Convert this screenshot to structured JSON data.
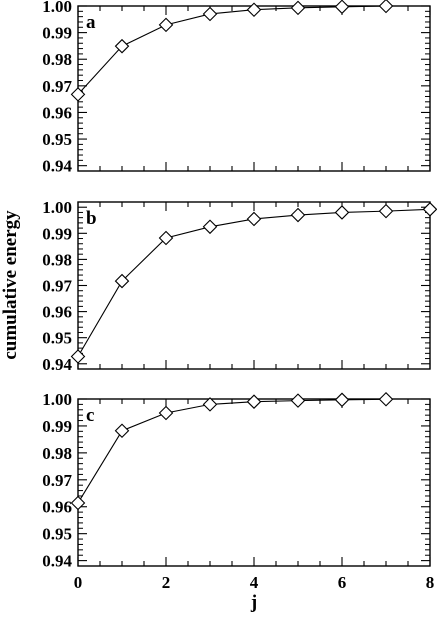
{
  "ylabel": "cumulative energy",
  "xlabel": "j",
  "x_tick_labels": [
    "0",
    "2",
    "4",
    "6",
    "8"
  ],
  "chart_data": [
    {
      "type": "line",
      "panel_label": "a",
      "xlim": [
        0,
        8
      ],
      "ylim": [
        0.938,
        1.0
      ],
      "y_ticks": [
        0.94,
        0.95,
        0.96,
        0.97,
        0.98,
        0.99,
        1.0
      ],
      "y_tick_labels": [
        "0.94",
        "0.95",
        "0.96",
        "0.97",
        "0.98",
        "0.99",
        "1.00"
      ],
      "x_ticks": [
        0,
        2,
        4,
        6,
        8
      ],
      "x_tick_labels_shown": false,
      "marker": "diamond",
      "series": [
        {
          "x": [
            0,
            1,
            2,
            3,
            4,
            5,
            6,
            7
          ],
          "values": [
            0.9668,
            0.9849,
            0.9929,
            0.997,
            0.9986,
            0.9993,
            0.9997,
            1.0
          ]
        }
      ]
    },
    {
      "type": "line",
      "panel_label": "b",
      "xlim": [
        0,
        8
      ],
      "ylim": [
        0.938,
        1.002
      ],
      "y_ticks": [
        0.94,
        0.95,
        0.96,
        0.97,
        0.98,
        0.99,
        1.0
      ],
      "y_tick_labels": [
        "0.94",
        "0.95",
        "0.96",
        "0.97",
        "0.98",
        "0.99",
        "1.00"
      ],
      "x_ticks": [
        0,
        2,
        4,
        6,
        8
      ],
      "x_tick_labels_shown": false,
      "marker": "diamond",
      "series": [
        {
          "x": [
            0,
            1,
            2,
            3,
            4,
            5,
            6,
            7,
            8
          ],
          "values": [
            0.9428,
            0.9717,
            0.9882,
            0.9925,
            0.9955,
            0.997,
            0.998,
            0.9985,
            0.9992
          ]
        }
      ]
    },
    {
      "type": "line",
      "panel_label": "c",
      "xlim": [
        0,
        8
      ],
      "ylim": [
        0.938,
        1.0
      ],
      "y_ticks": [
        0.94,
        0.95,
        0.96,
        0.97,
        0.98,
        0.99,
        1.0
      ],
      "y_tick_labels": [
        "0.94",
        "0.95",
        "0.96",
        "0.97",
        "0.98",
        "0.99",
        "1.00"
      ],
      "x_ticks": [
        0,
        2,
        4,
        6,
        8
      ],
      "x_tick_labels_shown": true,
      "marker": "diamond",
      "series": [
        {
          "x": [
            0,
            1,
            2,
            3,
            4,
            5,
            6,
            7
          ],
          "values": [
            0.9614,
            0.9882,
            0.9948,
            0.998,
            0.999,
            0.9994,
            0.9997,
            0.9999
          ]
        }
      ]
    }
  ]
}
